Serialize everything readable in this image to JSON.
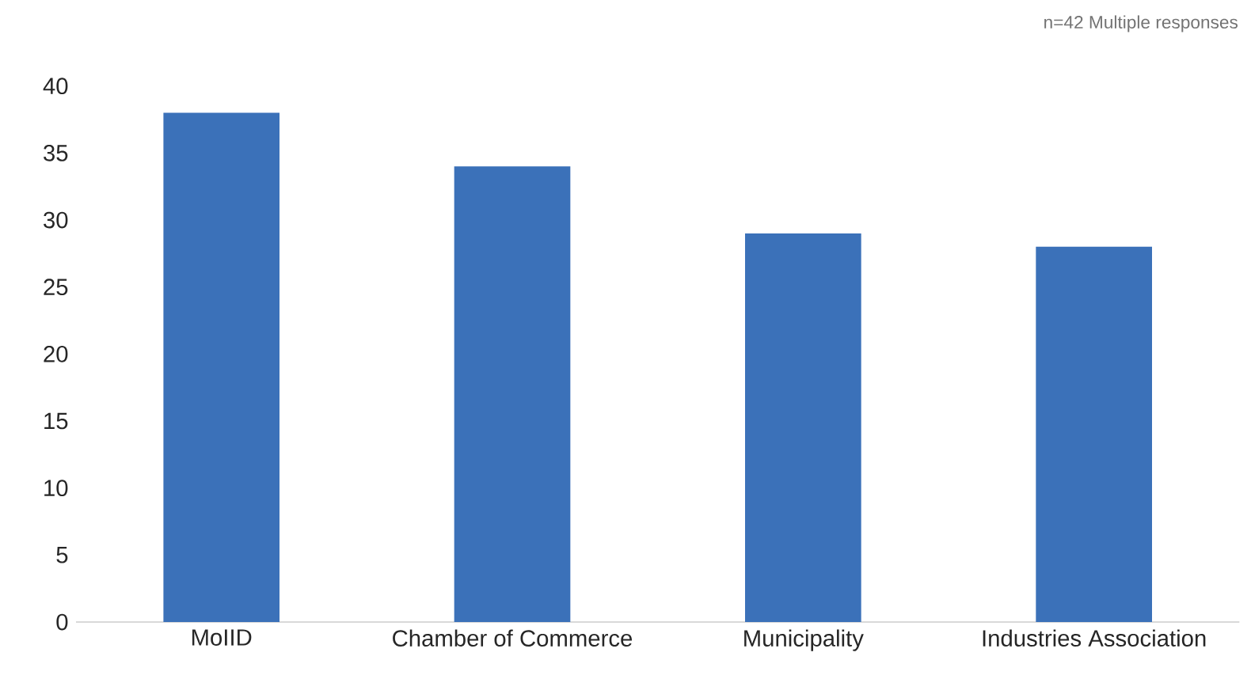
{
  "chart_data": {
    "type": "bar",
    "categories": [
      "MoIID",
      "Chamber of Commerce",
      "Municipality",
      "Industries Association"
    ],
    "values": [
      38,
      34,
      29,
      28
    ],
    "color": "#3b71b9",
    "ylim": [
      0,
      40
    ],
    "yticks": [
      0,
      5,
      10,
      15,
      20,
      25,
      30,
      35,
      40
    ],
    "annotations": [
      "n=42 Multiple responses"
    ]
  }
}
